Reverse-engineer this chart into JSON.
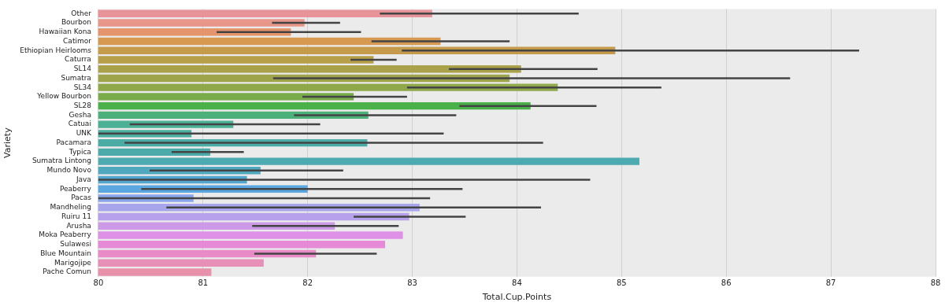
{
  "chart_data": {
    "type": "bar",
    "orientation": "horizontal",
    "xlabel": "Total.Cup.Points",
    "ylabel": "Variety",
    "categories": [
      "Other",
      "Bourbon",
      "Hawaiian Kona",
      "Catimor",
      "Ethiopian Heirlooms",
      "Caturra",
      "SL14",
      "Sumatra",
      "SL34",
      "Yellow Bourbon",
      "SL28",
      "Gesha",
      "Catuai",
      "UNK",
      "Pacamara",
      "Typica",
      "Sumatra Lintong",
      "Mundo Novo",
      "Java",
      "Peaberry",
      "Pacas",
      "Mandheling",
      "Ruiru 11",
      "Arusha",
      "Moka Peaberry",
      "Sulawesi",
      "Blue Mountain",
      "Marigojipe",
      "Pache Comun"
    ],
    "values": [
      83.19,
      81.97,
      81.84,
      83.27,
      84.94,
      82.63,
      84.04,
      83.93,
      84.39,
      82.44,
      84.13,
      82.58,
      81.29,
      80.89,
      82.57,
      81.07,
      85.17,
      81.55,
      81.42,
      82.0,
      80.91,
      83.07,
      82.97,
      82.26,
      82.91,
      82.74,
      82.08,
      81.58,
      81.08
    ],
    "errors": [
      [
        82.69,
        84.59
      ],
      [
        81.66,
        82.31
      ],
      [
        81.13,
        82.51
      ],
      [
        82.61,
        83.93
      ],
      [
        82.9,
        87.27
      ],
      [
        82.41,
        82.85
      ],
      [
        83.35,
        84.77
      ],
      [
        81.67,
        86.61
      ],
      [
        82.95,
        85.38
      ],
      [
        81.95,
        82.95
      ],
      [
        83.45,
        84.76
      ],
      [
        81.87,
        83.42
      ],
      [
        80.3,
        82.12
      ],
      [
        80.0,
        83.3
      ],
      [
        80.25,
        84.25
      ],
      [
        80.7,
        81.39
      ],
      null,
      [
        80.49,
        82.34
      ],
      [
        80.0,
        84.7
      ],
      [
        80.41,
        83.48
      ],
      [
        80.0,
        83.17
      ],
      [
        80.65,
        84.23
      ],
      [
        82.44,
        83.51
      ],
      [
        81.47,
        82.87
      ],
      null,
      null,
      [
        81.49,
        82.66
      ],
      null,
      null
    ],
    "colors": [
      "#e8939a",
      "#e8968a",
      "#e5956b",
      "#d6994f",
      "#c59a4a",
      "#b79f4a",
      "#a9a24a",
      "#9ea44a",
      "#8fa84a",
      "#7aab4a",
      "#4ab04a",
      "#4bb07a",
      "#4bb094",
      "#4bae9f",
      "#4baca6",
      "#4caaab",
      "#4daab0",
      "#4fa8bd",
      "#52a5cc",
      "#5aa6e0",
      "#8aa6ec",
      "#a7a6ec",
      "#b7a1ec",
      "#cc9ae6",
      "#df91e8",
      "#e68ad8",
      "#e88bc7",
      "#e88fb8",
      "#e891ab"
    ],
    "xlim": [
      80,
      88
    ],
    "xticks": [
      80,
      81,
      82,
      83,
      84,
      85,
      86,
      87,
      88
    ],
    "grid": "x",
    "legend": false
  }
}
